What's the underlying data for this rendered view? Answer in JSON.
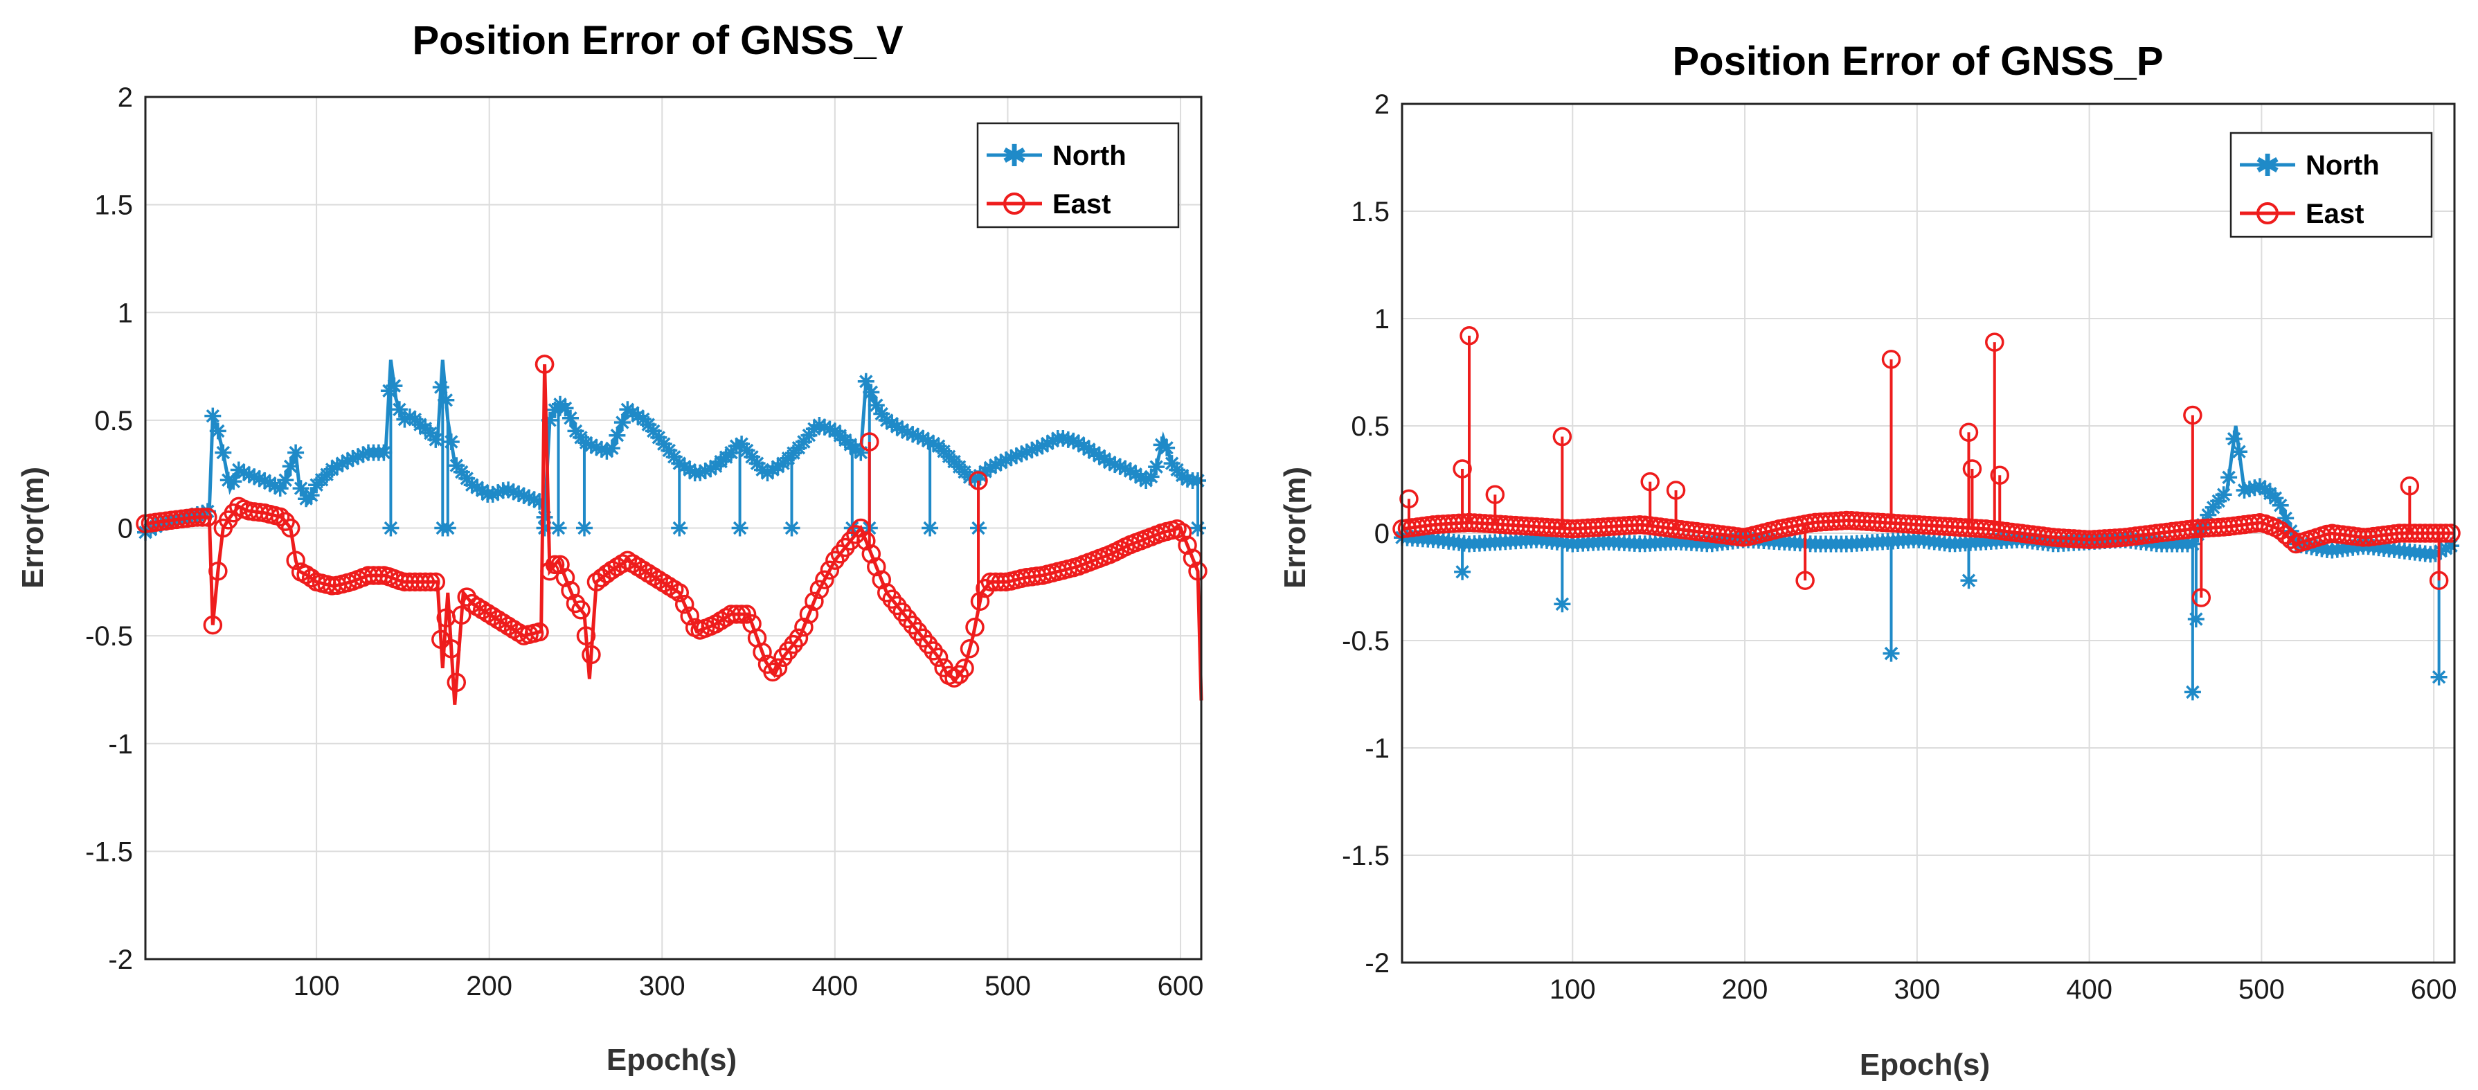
{
  "colors": {
    "north": "#1f8ac8",
    "east": "#ee1c1c"
  },
  "chart_data": [
    {
      "type": "line",
      "title": "Position Error of GNSS_V",
      "xlabel": "Epoch(s)",
      "ylabel": "Error(m)",
      "xlim": [
        1,
        612
      ],
      "ylim": [
        -2,
        2
      ],
      "x_ticks": [
        100,
        200,
        300,
        400,
        500,
        600
      ],
      "y_ticks": [
        -2,
        -1.5,
        -1,
        -0.5,
        0,
        0.5,
        1,
        1.5,
        2
      ],
      "x_tick_labels": [
        "100",
        "200",
        "300",
        "400",
        "500",
        "600"
      ],
      "y_tick_labels": [
        "-2",
        "-1.5",
        "-1",
        "-0.5",
        "0",
        "0.5",
        "1",
        "1.5",
        "2"
      ],
      "grid": true,
      "legend_position": "top-right",
      "series": [
        {
          "name": "North",
          "color": "#1f8ac8",
          "marker": "asterisk",
          "x": [
            1,
            10,
            20,
            30,
            38,
            40,
            43,
            46,
            50,
            55,
            60,
            70,
            80,
            88,
            90,
            95,
            100,
            110,
            120,
            130,
            140,
            143,
            146,
            150,
            155,
            160,
            165,
            170,
            173,
            176,
            180,
            185,
            190,
            195,
            200,
            210,
            220,
            230,
            232,
            235,
            240,
            245,
            250,
            255,
            260,
            270,
            275,
            280,
            290,
            300,
            310,
            320,
            330,
            340,
            345,
            350,
            360,
            370,
            380,
            390,
            400,
            410,
            415,
            418,
            420,
            425,
            430,
            440,
            450,
            460,
            470,
            480,
            490,
            500,
            510,
            520,
            530,
            540,
            550,
            560,
            570,
            580,
            585,
            590,
            595,
            600,
            605,
            610
          ],
          "y": [
            -0.02,
            0.02,
            0.04,
            0.06,
            0.08,
            0.52,
            0.45,
            0.35,
            0.18,
            0.27,
            0.25,
            0.22,
            0.18,
            0.35,
            0.2,
            0.12,
            0.2,
            0.28,
            0.32,
            0.35,
            0.35,
            0.78,
            0.6,
            0.5,
            0.52,
            0.48,
            0.45,
            0.4,
            0.78,
            0.5,
            0.3,
            0.25,
            0.2,
            0.18,
            0.15,
            0.18,
            0.15,
            0.12,
            0.05,
            0.5,
            0.58,
            0.55,
            0.45,
            0.4,
            0.38,
            0.35,
            0.45,
            0.55,
            0.5,
            0.4,
            0.3,
            0.25,
            0.28,
            0.35,
            0.4,
            0.35,
            0.25,
            0.3,
            0.38,
            0.48,
            0.45,
            0.38,
            0.35,
            0.68,
            0.65,
            0.55,
            0.5,
            0.45,
            0.42,
            0.38,
            0.3,
            0.22,
            0.28,
            0.32,
            0.35,
            0.38,
            0.42,
            0.4,
            0.35,
            0.3,
            0.27,
            0.22,
            0.25,
            0.42,
            0.3,
            0.25,
            0.22,
            0.22
          ],
          "spikes_to_zero": [
            143,
            173,
            176,
            232,
            240,
            255,
            310,
            345,
            375,
            410,
            420,
            455,
            483,
            610
          ]
        },
        {
          "name": "East",
          "color": "#ee1c1c",
          "marker": "circle",
          "x": [
            1,
            10,
            20,
            30,
            38,
            40,
            43,
            46,
            50,
            55,
            60,
            70,
            80,
            85,
            88,
            90,
            95,
            100,
            110,
            120,
            130,
            140,
            150,
            160,
            170,
            173,
            176,
            180,
            185,
            190,
            200,
            210,
            220,
            230,
            232,
            235,
            240,
            245,
            250,
            255,
            258,
            262,
            270,
            280,
            290,
            300,
            310,
            320,
            330,
            340,
            350,
            360,
            365,
            370,
            380,
            390,
            400,
            410,
            415,
            420,
            430,
            440,
            450,
            460,
            465,
            470,
            475,
            480,
            485,
            490,
            500,
            510,
            520,
            530,
            540,
            550,
            560,
            570,
            580,
            590,
            600,
            605,
            610,
            612
          ],
          "y": [
            0.02,
            0.03,
            0.04,
            0.05,
            0.05,
            -0.45,
            -0.2,
            0.0,
            0.05,
            0.1,
            0.08,
            0.07,
            0.05,
            0.0,
            -0.15,
            -0.2,
            -0.22,
            -0.25,
            -0.27,
            -0.25,
            -0.22,
            -0.22,
            -0.25,
            -0.25,
            -0.25,
            -0.65,
            -0.3,
            -0.82,
            -0.3,
            -0.35,
            -0.4,
            -0.45,
            -0.5,
            -0.48,
            0.76,
            -0.2,
            -0.15,
            -0.25,
            -0.35,
            -0.4,
            -0.7,
            -0.25,
            -0.2,
            -0.15,
            -0.2,
            -0.25,
            -0.3,
            -0.48,
            -0.45,
            -0.4,
            -0.4,
            -0.62,
            -0.68,
            -0.6,
            -0.5,
            -0.3,
            -0.15,
            -0.05,
            0.0,
            -0.1,
            -0.3,
            -0.4,
            -0.5,
            -0.6,
            -0.68,
            -0.7,
            -0.65,
            -0.5,
            -0.3,
            -0.25,
            -0.25,
            -0.23,
            -0.22,
            -0.2,
            -0.18,
            -0.15,
            -0.12,
            -0.08,
            -0.05,
            -0.02,
            0.0,
            -0.1,
            -0.2,
            -0.8
          ],
          "spikes_to": [
            [
              232,
              0.76
            ],
            [
              420,
              0.4
            ],
            [
              483,
              0.22
            ]
          ]
        }
      ]
    },
    {
      "type": "line",
      "title": "Position Error of GNSS_P",
      "xlabel": "Epoch(s)",
      "ylabel": "Error(m)",
      "xlim": [
        1,
        612
      ],
      "ylim": [
        -2,
        2
      ],
      "x_ticks": [
        100,
        200,
        300,
        400,
        500,
        600
      ],
      "y_ticks": [
        -2,
        -1.5,
        -1,
        -0.5,
        0,
        0.5,
        1,
        1.5,
        2
      ],
      "x_tick_labels": [
        "100",
        "200",
        "300",
        "400",
        "500",
        "600"
      ],
      "y_tick_labels": [
        "-2",
        "-1.5",
        "-1",
        "-0.5",
        "0",
        "0.5",
        "1",
        "1.5",
        "2"
      ],
      "grid": true,
      "legend_position": "top-right",
      "series": [
        {
          "name": "North",
          "color": "#1f8ac8",
          "marker": "asterisk",
          "x": [
            1,
            20,
            40,
            60,
            80,
            100,
            120,
            140,
            160,
            180,
            200,
            220,
            240,
            260,
            280,
            300,
            320,
            340,
            360,
            380,
            400,
            420,
            440,
            460,
            470,
            480,
            485,
            490,
            500,
            510,
            520,
            540,
            560,
            580,
            600,
            612
          ],
          "y": [
            -0.02,
            -0.03,
            -0.05,
            -0.04,
            -0.03,
            -0.05,
            -0.04,
            -0.05,
            -0.04,
            -0.05,
            -0.03,
            -0.04,
            -0.05,
            -0.05,
            -0.04,
            -0.03,
            -0.05,
            -0.04,
            -0.03,
            -0.05,
            -0.04,
            -0.03,
            -0.05,
            -0.05,
            0.1,
            0.2,
            0.5,
            0.2,
            0.22,
            0.15,
            -0.05,
            -0.08,
            -0.06,
            -0.08,
            -0.1,
            -0.05
          ],
          "spikes_to": [
            [
              36,
              -0.18
            ],
            [
              94,
              -0.33
            ],
            [
              285,
              -0.56
            ],
            [
              330,
              -0.22
            ],
            [
              460,
              -0.74
            ],
            [
              462,
              -0.4
            ],
            [
              603,
              -0.67
            ]
          ]
        },
        {
          "name": "East",
          "color": "#ee1c1c",
          "marker": "circle",
          "x": [
            1,
            20,
            40,
            60,
            80,
            100,
            120,
            140,
            160,
            180,
            200,
            220,
            240,
            260,
            280,
            300,
            320,
            340,
            360,
            380,
            400,
            420,
            440,
            460,
            480,
            500,
            510,
            520,
            540,
            560,
            580,
            600,
            612
          ],
          "y": [
            0.02,
            0.04,
            0.05,
            0.04,
            0.03,
            0.02,
            0.03,
            0.04,
            0.02,
            0.0,
            -0.02,
            0.02,
            0.05,
            0.06,
            0.05,
            0.04,
            0.03,
            0.02,
            0.0,
            -0.02,
            -0.03,
            -0.02,
            0.0,
            0.02,
            0.03,
            0.05,
            0.02,
            -0.05,
            0.0,
            -0.02,
            0.0,
            0.0,
            0.0
          ],
          "spikes_to": [
            [
              5,
              0.16
            ],
            [
              36,
              0.3
            ],
            [
              40,
              0.92
            ],
            [
              55,
              0.18
            ],
            [
              94,
              0.45
            ],
            [
              145,
              0.24
            ],
            [
              160,
              0.2
            ],
            [
              235,
              -0.22
            ],
            [
              285,
              0.81
            ],
            [
              330,
              0.47
            ],
            [
              332,
              0.3
            ],
            [
              345,
              0.89
            ],
            [
              348,
              0.27
            ],
            [
              460,
              0.55
            ],
            [
              465,
              -0.3
            ],
            [
              586,
              0.22
            ],
            [
              603,
              -0.22
            ]
          ]
        }
      ]
    }
  ]
}
